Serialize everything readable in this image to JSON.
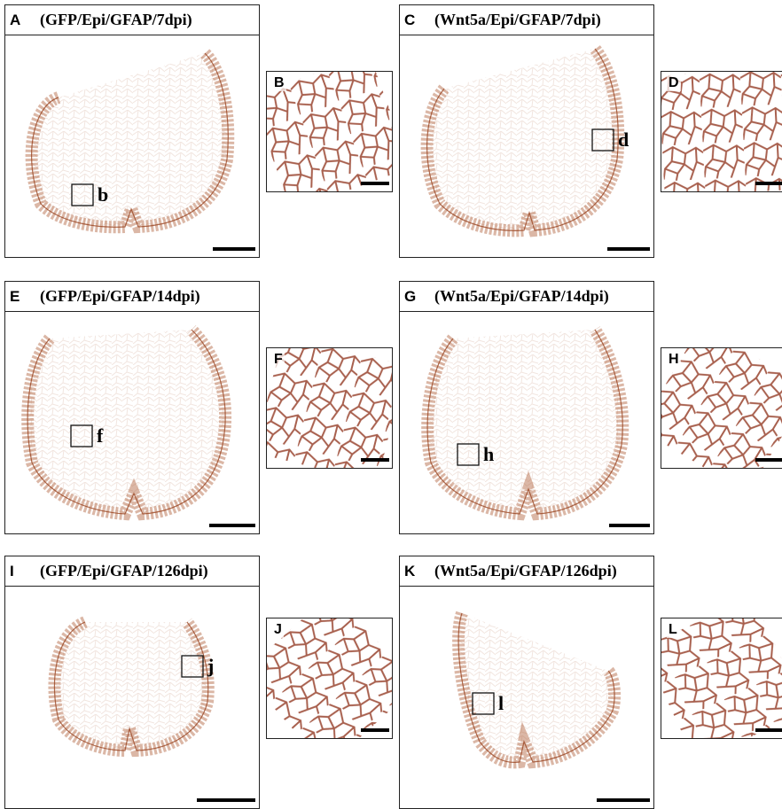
{
  "panels": [
    {
      "letter": "A",
      "title": "(GFP/Epi/GFAP/7dpi)",
      "box_label": "b",
      "zoom_letter": "B"
    },
    {
      "letter": "C",
      "title": "(Wnt5a/Epi/GFAP/7dpi)",
      "box_label": "d",
      "zoom_letter": "D"
    },
    {
      "letter": "E",
      "title": "(GFP/Epi/GFAP/14dpi)",
      "box_label": "f",
      "zoom_letter": "F"
    },
    {
      "letter": "G",
      "title": "(Wnt5a/Epi/GFAP/14dpi)",
      "box_label": "h",
      "zoom_letter": "H"
    },
    {
      "letter": "I",
      "title": "(GFP/Epi/GFAP/126dpi)",
      "box_label": "j",
      "zoom_letter": "J"
    },
    {
      "letter": "K",
      "title": "(Wnt5a/Epi/GFAP/126dpi)",
      "box_label": "l",
      "zoom_letter": "L"
    }
  ]
}
